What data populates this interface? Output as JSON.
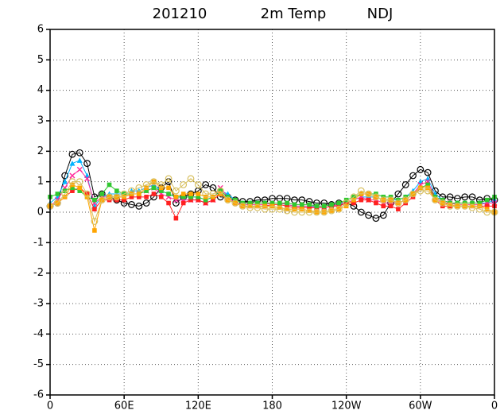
{
  "chart_data": {
    "type": "line",
    "title_parts": [
      "201210",
      "2m Temp",
      "NDJ"
    ],
    "x": [
      0,
      6,
      12,
      18,
      24,
      30,
      36,
      42,
      48,
      54,
      60,
      66,
      72,
      78,
      84,
      90,
      96,
      102,
      108,
      114,
      120,
      126,
      132,
      138,
      144,
      150,
      156,
      162,
      168,
      174,
      180,
      186,
      192,
      198,
      204,
      210,
      216,
      222,
      228,
      234,
      240,
      246,
      252,
      258,
      264,
      270,
      276,
      282,
      288,
      294,
      300,
      306,
      312,
      318,
      324,
      330,
      336,
      342,
      348,
      354,
      360
    ],
    "xlim": [
      0,
      360
    ],
    "xticks": [
      0,
      {
        "value": 60,
        "label": "60E"
      },
      {
        "value": 120,
        "label": "120E"
      },
      180,
      {
        "value": 240,
        "label": "120W"
      },
      {
        "value": 300,
        "label": "60W"
      },
      {
        "value": 360,
        "label": "0"
      }
    ],
    "ylim": [
      -6,
      6
    ],
    "yticks": [
      -6,
      -5,
      -4,
      -3,
      -2,
      -1,
      0,
      1,
      2,
      3,
      4,
      5,
      6
    ],
    "grid": true,
    "series": [
      {
        "color": "#000000",
        "marker": "circle",
        "values": [
          0.2,
          0.3,
          1.2,
          1.9,
          1.95,
          1.6,
          0.5,
          0.6,
          0.5,
          0.4,
          0.3,
          0.25,
          0.2,
          0.3,
          0.5,
          0.8,
          1.0,
          0.3,
          0.5,
          0.6,
          0.7,
          0.9,
          0.8,
          0.5,
          0.5,
          0.4,
          0.35,
          0.35,
          0.4,
          0.4,
          0.45,
          0.45,
          0.45,
          0.4,
          0.4,
          0.35,
          0.3,
          0.3,
          0.25,
          0.3,
          0.3,
          0.2,
          0.0,
          -0.1,
          -0.2,
          -0.1,
          0.3,
          0.6,
          0.9,
          1.2,
          1.4,
          1.3,
          0.7,
          0.5,
          0.5,
          0.45,
          0.5,
          0.5,
          0.4,
          0.45,
          0.4
        ]
      },
      {
        "color": "#00b4ff",
        "marker": "triangle",
        "values": [
          0.3,
          0.5,
          1.0,
          1.6,
          1.7,
          1.2,
          0.2,
          0.5,
          0.6,
          0.6,
          0.6,
          0.7,
          0.7,
          0.8,
          0.9,
          0.7,
          0.6,
          0.5,
          0.5,
          0.5,
          0.5,
          0.4,
          0.5,
          0.7,
          0.6,
          0.4,
          0.3,
          0.3,
          0.3,
          0.3,
          0.3,
          0.3,
          0.25,
          0.2,
          0.2,
          0.2,
          0.2,
          0.2,
          0.25,
          0.3,
          0.3,
          0.4,
          0.5,
          0.5,
          0.5,
          0.4,
          0.4,
          0.4,
          0.5,
          0.7,
          1.0,
          1.1,
          0.6,
          0.4,
          0.3,
          0.3,
          0.3,
          0.3,
          0.3,
          0.3,
          0.4
        ]
      },
      {
        "color": "#ff2a9a",
        "marker": "cross",
        "values": [
          0.2,
          0.4,
          0.8,
          1.2,
          1.4,
          1.1,
          0.3,
          0.5,
          0.5,
          0.5,
          0.5,
          0.6,
          0.6,
          0.7,
          0.8,
          0.6,
          0.5,
          0.4,
          0.4,
          0.4,
          0.4,
          0.3,
          0.4,
          0.8,
          0.5,
          0.3,
          0.25,
          0.25,
          0.25,
          0.25,
          0.3,
          0.3,
          0.25,
          0.2,
          0.2,
          0.2,
          0.15,
          0.15,
          0.2,
          0.25,
          0.3,
          0.4,
          0.5,
          0.4,
          0.4,
          0.3,
          0.3,
          0.3,
          0.4,
          0.6,
          0.9,
          1.0,
          0.5,
          0.3,
          0.3,
          0.25,
          0.25,
          0.25,
          0.25,
          0.3,
          0.3
        ]
      },
      {
        "color": "#ff2020",
        "marker": "square",
        "values": [
          0.2,
          0.3,
          0.5,
          0.7,
          0.8,
          0.6,
          0.1,
          0.4,
          0.4,
          0.4,
          0.4,
          0.5,
          0.5,
          0.5,
          0.6,
          0.5,
          0.3,
          -0.2,
          0.3,
          0.4,
          0.4,
          0.3,
          0.4,
          0.6,
          0.4,
          0.3,
          0.2,
          0.2,
          0.2,
          0.2,
          0.25,
          0.25,
          0.2,
          0.15,
          0.15,
          0.15,
          0.15,
          0.15,
          0.2,
          0.2,
          0.3,
          0.3,
          0.4,
          0.4,
          0.3,
          0.2,
          0.2,
          0.1,
          0.3,
          0.5,
          0.8,
          0.9,
          0.4,
          0.2,
          0.2,
          0.2,
          0.2,
          0.2,
          0.2,
          0.2,
          0.2
        ]
      },
      {
        "color": "#30c830",
        "marker": "square",
        "values": [
          0.5,
          0.6,
          0.7,
          0.8,
          0.7,
          0.5,
          0.4,
          0.6,
          0.9,
          0.7,
          0.6,
          0.6,
          0.6,
          0.7,
          0.8,
          0.7,
          0.6,
          0.5,
          0.5,
          0.5,
          0.5,
          0.4,
          0.5,
          0.7,
          0.5,
          0.4,
          0.3,
          0.3,
          0.3,
          0.3,
          0.3,
          0.3,
          0.3,
          0.25,
          0.25,
          0.25,
          0.2,
          0.2,
          0.25,
          0.3,
          0.4,
          0.5,
          0.6,
          0.6,
          0.6,
          0.5,
          0.5,
          0.4,
          0.5,
          0.6,
          0.8,
          0.9,
          0.5,
          0.4,
          0.3,
          0.3,
          0.3,
          0.3,
          0.3,
          0.4,
          0.5
        ]
      },
      {
        "color": "#ffa500",
        "marker": "square",
        "values": [
          0.2,
          0.3,
          0.5,
          0.9,
          0.8,
          0.5,
          -0.6,
          0.4,
          0.5,
          0.5,
          0.5,
          0.6,
          0.6,
          0.8,
          1.0,
          0.8,
          0.8,
          0.5,
          0.6,
          0.6,
          0.6,
          0.5,
          0.5,
          0.6,
          0.4,
          0.3,
          0.2,
          0.2,
          0.2,
          0.2,
          0.2,
          0.15,
          0.1,
          0.1,
          0.1,
          0.05,
          0.0,
          0.0,
          0.05,
          0.1,
          0.2,
          0.4,
          0.6,
          0.6,
          0.5,
          0.4,
          0.4,
          0.3,
          0.4,
          0.6,
          0.8,
          0.8,
          0.4,
          0.3,
          0.25,
          0.2,
          0.2,
          0.2,
          0.2,
          0.1,
          0.0
        ]
      },
      {
        "color": "#d8c060",
        "marker": "circle",
        "values": [
          0.2,
          0.3,
          0.6,
          1.0,
          1.0,
          0.6,
          -0.3,
          0.4,
          0.5,
          0.5,
          0.6,
          0.7,
          0.8,
          0.9,
          1.0,
          0.9,
          1.1,
          0.7,
          0.9,
          1.1,
          0.9,
          0.6,
          0.6,
          0.7,
          0.4,
          0.3,
          0.2,
          0.15,
          0.15,
          0.1,
          0.1,
          0.1,
          0.05,
          0.0,
          0.0,
          0.0,
          0.0,
          0.0,
          0.05,
          0.1,
          0.3,
          0.5,
          0.7,
          0.6,
          0.5,
          0.4,
          0.4,
          0.3,
          0.4,
          0.6,
          0.7,
          0.7,
          0.4,
          0.3,
          0.2,
          0.2,
          0.2,
          0.15,
          0.1,
          0.0,
          0.0
        ]
      }
    ]
  }
}
